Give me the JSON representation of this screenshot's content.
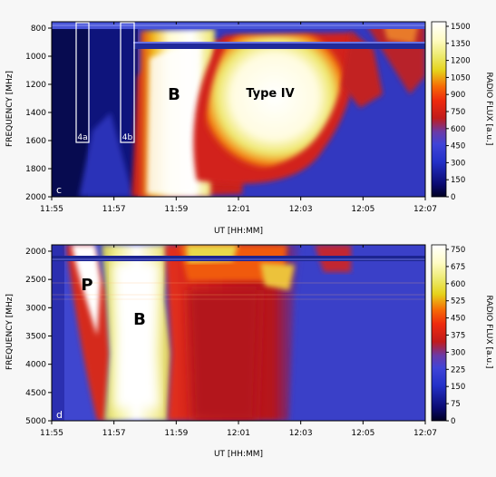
{
  "chart_data": [
    {
      "panel": "c",
      "type": "heatmap",
      "xlabel": "UT [HH:MM]",
      "ylabel": "FREQUENCY [MHz]",
      "x_ticks": [
        "11:55",
        "11:57",
        "11:59",
        "12:01",
        "12:03",
        "12:05",
        "12:07"
      ],
      "y_ticks": [
        "800",
        "1000",
        "1200",
        "1400",
        "1600",
        "1800",
        "2000"
      ],
      "xlim": [
        "11:55",
        "12:07"
      ],
      "ylim": [
        2000,
        780
      ],
      "colorbar": {
        "label": "RADIO FLUX [a.u.]",
        "ticks": [
          "1500",
          "1350",
          "1200",
          "1050",
          "900",
          "750",
          "600",
          "450",
          "300",
          "150",
          "0"
        ],
        "range": [
          0,
          1500
        ]
      },
      "annotations": [
        {
          "text": "B",
          "x": "11:59",
          "y": 1320
        },
        {
          "text": "Type IV",
          "x": "12:02",
          "y": 1330
        }
      ],
      "boxes": [
        {
          "label": "4a",
          "x_from": "11:55:45",
          "x_to": "11:56:20",
          "y_from": 780,
          "y_to": 1620
        },
        {
          "label": "4b",
          "x_from": "11:57:00",
          "x_to": "11:57:30",
          "y_from": 780,
          "y_to": 1620
        }
      ],
      "data_gaps": [
        [
          780,
          790
        ],
        [
          925,
          950
        ]
      ]
    },
    {
      "panel": "d",
      "type": "heatmap",
      "xlabel": "UT [HH:MM]",
      "ylabel": "FREQUENCY [MHz]",
      "x_ticks": [
        "11:55",
        "11:57",
        "11:59",
        "12:01",
        "12:03",
        "12:05",
        "12:07"
      ],
      "y_ticks": [
        "2000",
        "2500",
        "3000",
        "3500",
        "4000",
        "4500",
        "5000"
      ],
      "xlim": [
        "11:55",
        "12:07"
      ],
      "ylim": [
        5000,
        1950
      ],
      "colorbar": {
        "label": "RADIO FLUX [a.u.]",
        "ticks": [
          "750",
          "675",
          "600",
          "525",
          "450",
          "375",
          "300",
          "225",
          "150",
          "75",
          "0"
        ],
        "range": [
          0,
          750
        ]
      },
      "annotations": [
        {
          "text": "P",
          "x": "11:56",
          "y": 2580
        },
        {
          "text": "B",
          "x": "11:58",
          "y": 3300
        }
      ],
      "data_gaps": [
        [
          2060,
          2110
        ]
      ]
    }
  ]
}
